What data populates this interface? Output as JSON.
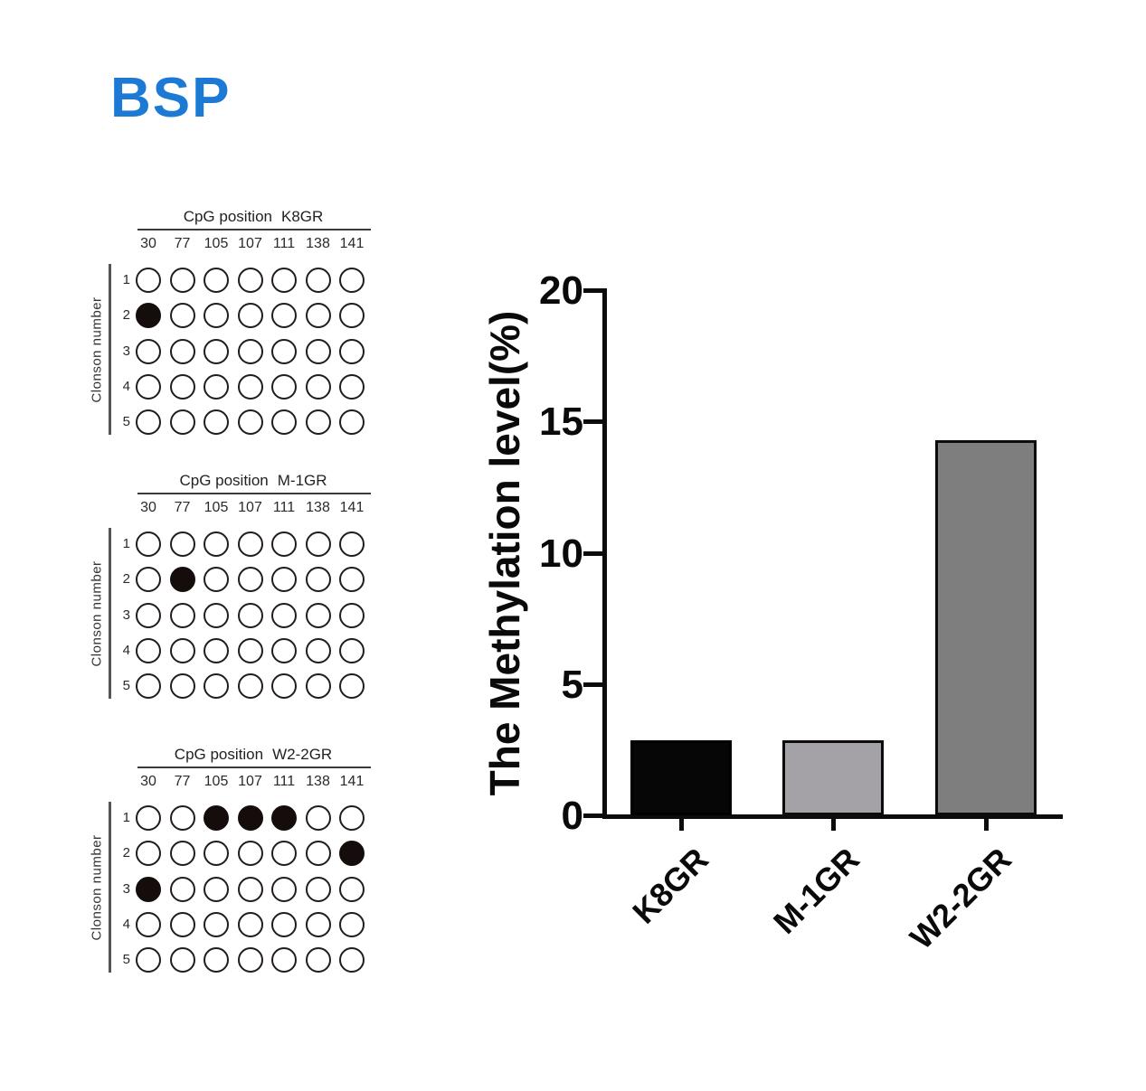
{
  "figure_title": "BSP",
  "colors": {
    "title_blue": "#1c7ad5",
    "axis_black": "#0c0c0c",
    "methylated_dot": "#150d0c",
    "bar_colors": [
      "#060606",
      "#a4a2a7",
      "#7e7e7e"
    ]
  },
  "dot_panels": {
    "title_prefix": "CpG position",
    "clone_axis_title": "Clonson number",
    "positions": [
      "30",
      "77",
      "105",
      "107",
      "111",
      "138",
      "141"
    ],
    "clones": [
      "1",
      "2",
      "3",
      "4",
      "5"
    ],
    "panels": [
      {
        "sample": "K8GR",
        "methylation_matrix": [
          [
            0,
            0,
            0,
            0,
            0,
            0,
            0
          ],
          [
            1,
            0,
            0,
            0,
            0,
            0,
            0
          ],
          [
            0,
            0,
            0,
            0,
            0,
            0,
            0
          ],
          [
            0,
            0,
            0,
            0,
            0,
            0,
            0
          ],
          [
            0,
            0,
            0,
            0,
            0,
            0,
            0
          ]
        ]
      },
      {
        "sample": "M-1GR",
        "methylation_matrix": [
          [
            0,
            0,
            0,
            0,
            0,
            0,
            0
          ],
          [
            0,
            1,
            0,
            0,
            0,
            0,
            0
          ],
          [
            0,
            0,
            0,
            0,
            0,
            0,
            0
          ],
          [
            0,
            0,
            0,
            0,
            0,
            0,
            0
          ],
          [
            0,
            0,
            0,
            0,
            0,
            0,
            0
          ]
        ]
      },
      {
        "sample": "W2-2GR",
        "methylation_matrix": [
          [
            0,
            0,
            1,
            1,
            1,
            0,
            0
          ],
          [
            0,
            0,
            0,
            0,
            0,
            0,
            1
          ],
          [
            1,
            0,
            0,
            0,
            0,
            0,
            0
          ],
          [
            0,
            0,
            0,
            0,
            0,
            0,
            0
          ],
          [
            0,
            0,
            0,
            0,
            0,
            0,
            0
          ]
        ]
      }
    ]
  },
  "chart_data": {
    "type": "bar",
    "title": "",
    "categories": [
      "K8GR",
      "M-1GR",
      "W2-2GR"
    ],
    "values": [
      2.86,
      2.86,
      14.29
    ],
    "xlabel": "",
    "ylabel": "The Methylation level(%)",
    "ylim": [
      0,
      20
    ],
    "yticks": [
      0,
      5,
      10,
      15,
      20
    ],
    "bar_colors": [
      "#060606",
      "#a4a2a7",
      "#7e7e7e"
    ],
    "grid": false,
    "legend": "none"
  }
}
